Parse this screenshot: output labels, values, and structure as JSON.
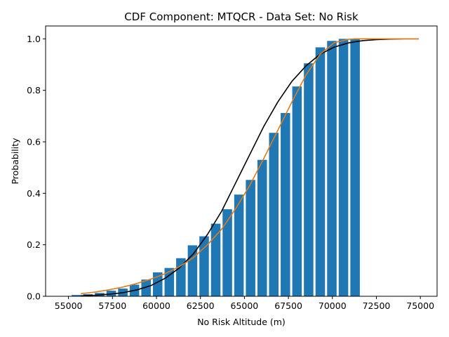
{
  "chart_data": {
    "type": "bar",
    "title": "CDF Component: MTQCR - Data Set: No Risk",
    "xlabel": "No Risk Altitude (m)",
    "ylabel": "Probability",
    "xlim": [
      53700,
      75950
    ],
    "ylim": [
      0,
      1.05
    ],
    "xticks": [
      55000,
      57500,
      60000,
      62500,
      65000,
      67500,
      70000,
      72500,
      75000
    ],
    "xtick_labels": [
      "55000",
      "57500",
      "60000",
      "62500",
      "65000",
      "67500",
      "70000",
      "72500",
      "75000"
    ],
    "yticks": [
      0.0,
      0.2,
      0.4,
      0.6,
      0.8,
      1.0
    ],
    "ytick_labels": [
      "0.0",
      "0.2",
      "0.4",
      "0.6",
      "0.8",
      "1.0"
    ],
    "grid": false,
    "bar_color": "#1f77b4",
    "bar_width": 540,
    "bars": {
      "x": [
        55450,
        56110,
        56770,
        57430,
        58090,
        58750,
        59410,
        60070,
        60730,
        61390,
        62050,
        62710,
        63370,
        64030,
        64690,
        65350,
        66010,
        66670,
        67330,
        67990,
        68650,
        69310,
        69970,
        70630,
        71290
      ],
      "values": [
        0.005,
        0.008,
        0.013,
        0.022,
        0.03,
        0.045,
        0.065,
        0.093,
        0.11,
        0.148,
        0.198,
        0.233,
        0.282,
        0.338,
        0.395,
        0.452,
        0.53,
        0.635,
        0.712,
        0.815,
        0.905,
        0.967,
        0.992,
        1.0,
        1.0
      ]
    },
    "series": [
      {
        "color": "#000000",
        "x": [
          55700,
          56500,
          57300,
          58100,
          58900,
          59700,
          60500,
          61300,
          62100,
          62900,
          63700,
          64500,
          65300,
          66100,
          66900,
          67700,
          68500,
          69300,
          70100,
          70900,
          71700,
          72500,
          73300,
          74100,
          74900
        ],
        "values": [
          0.002,
          0.004,
          0.008,
          0.014,
          0.025,
          0.042,
          0.07,
          0.11,
          0.165,
          0.24,
          0.33,
          0.44,
          0.55,
          0.66,
          0.755,
          0.835,
          0.895,
          0.94,
          0.968,
          0.984,
          0.993,
          0.997,
          0.999,
          1.0,
          1.0
        ]
      },
      {
        "color": "#e07b1a",
        "x": [
          55700,
          56500,
          57300,
          58100,
          58900,
          59700,
          60500,
          61300,
          62100,
          62900,
          63700,
          64500,
          65300,
          66100,
          66900,
          67700,
          68500,
          69300,
          70100,
          70900,
          71300,
          71700,
          72500,
          73300,
          74100,
          74900
        ],
        "values": [
          0.01,
          0.016,
          0.025,
          0.036,
          0.05,
          0.067,
          0.088,
          0.115,
          0.15,
          0.2,
          0.26,
          0.34,
          0.43,
          0.535,
          0.645,
          0.755,
          0.86,
          0.94,
          0.985,
          0.998,
          1.0,
          1.0,
          1.0,
          1.0,
          1.0,
          1.0
        ]
      }
    ]
  }
}
